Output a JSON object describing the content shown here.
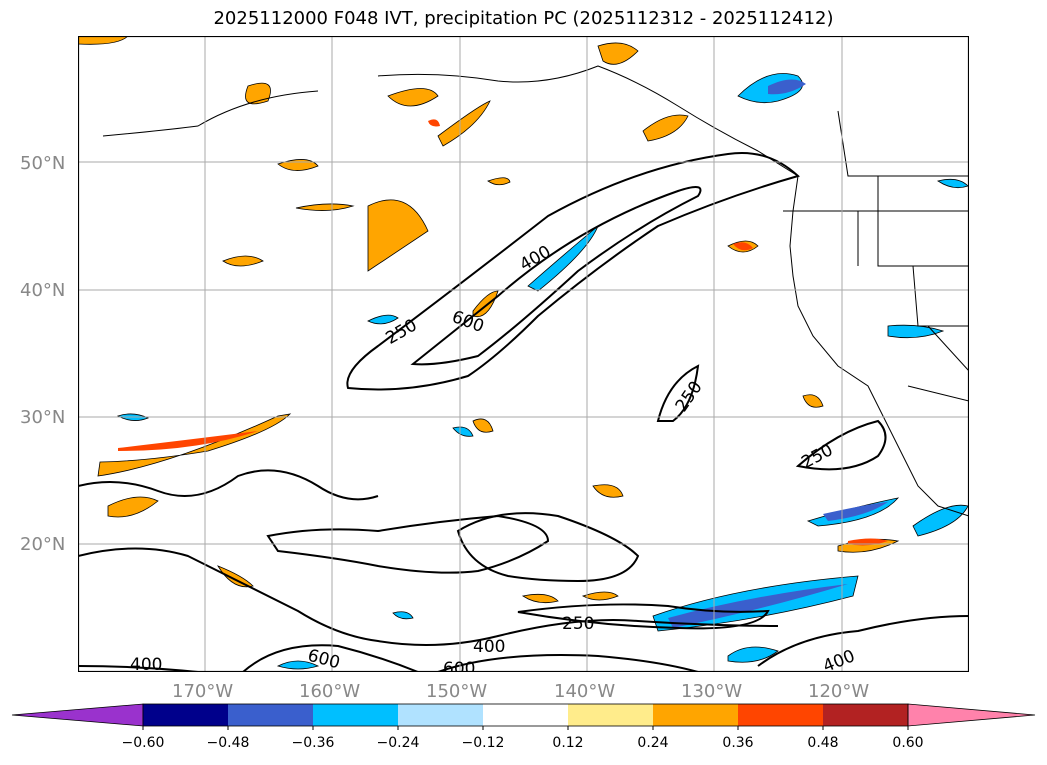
{
  "title": "2025112000 F048 IVT, precipitation PC (2025112312 - 2025112412)",
  "map": {
    "lon_range": [
      -180,
      -110
    ],
    "lat_range": [
      10,
      60
    ],
    "lat_labels": [
      "20°N",
      "30°N",
      "40°N",
      "50°N"
    ],
    "lon_labels": [
      "170°W",
      "160°W",
      "150°W",
      "140°W",
      "130°W",
      "120°W"
    ],
    "contour_labels": [
      {
        "text": "250"
      },
      {
        "text": "400"
      },
      {
        "text": "600"
      },
      {
        "text": "250"
      },
      {
        "text": "250"
      },
      {
        "text": "250"
      },
      {
        "text": "400"
      },
      {
        "text": "400"
      },
      {
        "text": "600"
      },
      {
        "text": "600"
      },
      {
        "text": "400"
      }
    ]
  },
  "colorbar": {
    "ticks": [
      "−0.60",
      "−0.48",
      "−0.36",
      "−0.24",
      "−0.12",
      "0.12",
      "0.24",
      "0.36",
      "0.48",
      "0.60"
    ],
    "colors": [
      "#9a32cd",
      "#00008b",
      "#3a5fcd",
      "#00bfff",
      "#b0e2ff",
      "#ffffff",
      "#ffec8b",
      "#ffa500",
      "#ff4500",
      "#b22222",
      "#ff82ab"
    ]
  }
}
